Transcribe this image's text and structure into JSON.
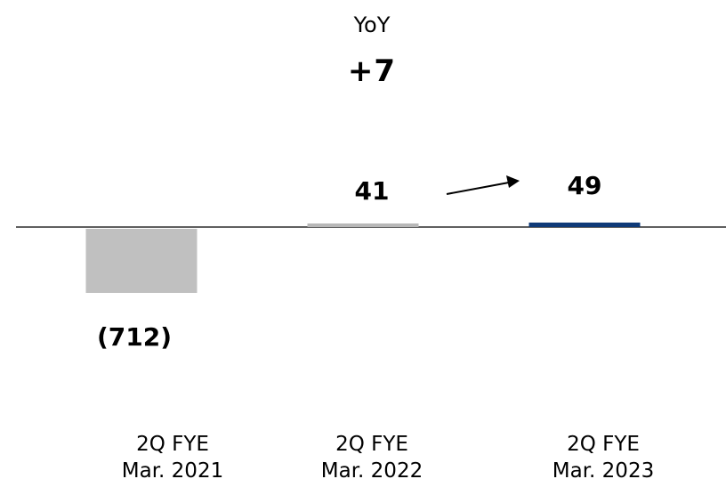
{
  "yoy": {
    "label": "YoY",
    "value": "+7"
  },
  "chart_data": {
    "type": "bar",
    "categories": [
      [
        "2Q FYE",
        "Mar. 2021"
      ],
      [
        "2Q FYE",
        "Mar. 2022"
      ],
      [
        "2Q FYE",
        "Mar. 2023"
      ]
    ],
    "values": [
      -712,
      41,
      49
    ],
    "value_labels": [
      "(712)",
      "41",
      "49"
    ],
    "bar_colors": [
      "#c0c0c0",
      "#b8b8b8",
      "#0f3a78"
    ],
    "axis_color": "#000000",
    "arrow": {
      "from_category": 1,
      "to_category": 2
    }
  }
}
